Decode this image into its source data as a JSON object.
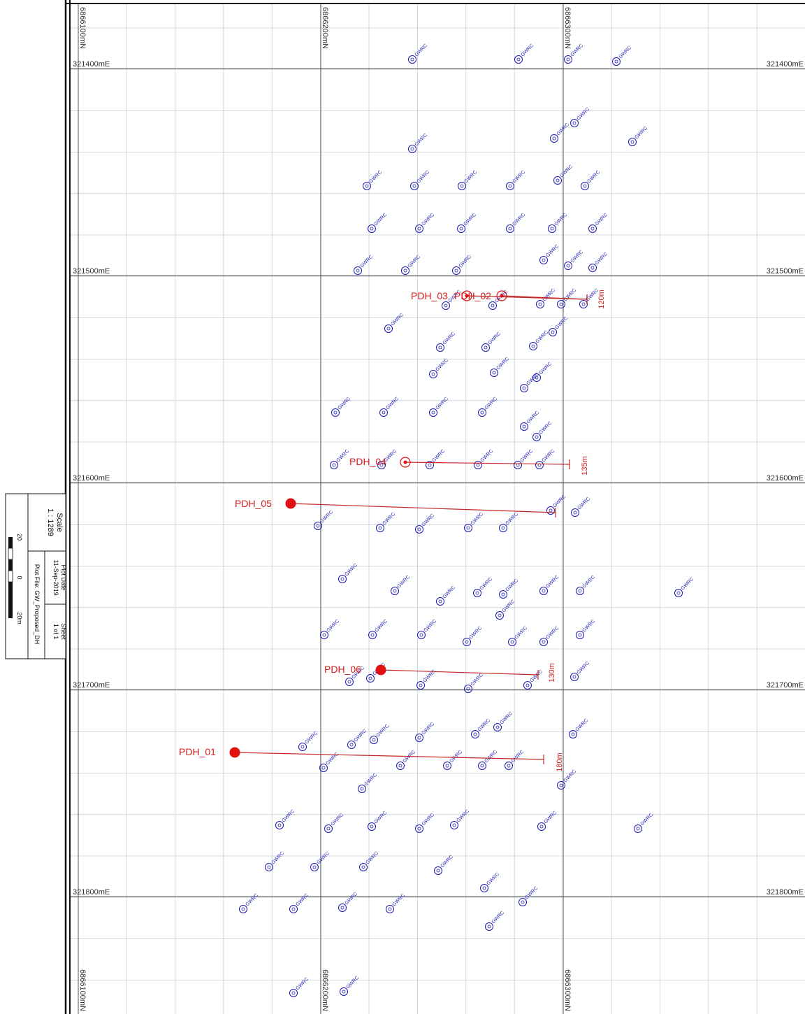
{
  "title_block": {
    "scale_label": "Scale",
    "scale_value": "1 : 1289",
    "plot_date_label": "Plot Date",
    "plot_date": "11-Sep-2019",
    "plot_file": "Plot File: GW_Proposed_DH",
    "sheet_label": "Sheet",
    "sheet_value": "1 of 1",
    "scalebar_left": "20",
    "scalebar_mid": "0",
    "scalebar_right": "20m"
  },
  "grid": {
    "eastings": [
      {
        "label": "321400mE",
        "value": 321400
      },
      {
        "label": "321500mE",
        "value": 321500
      },
      {
        "label": "321600mE",
        "value": 321600
      },
      {
        "label": "321700mE",
        "value": 321700
      },
      {
        "label": "321800mE",
        "value": 321800
      }
    ],
    "northings": [
      {
        "label": "6866100mN",
        "value": 6866100
      },
      {
        "label": "6866200mN",
        "value": 6866200
      },
      {
        "label": "6866300mN",
        "value": 6866300
      }
    ]
  },
  "colors": {
    "frame": "#111111",
    "grid_major": "#555555",
    "grid_minor": "#c8cdd6",
    "existing_hole": "#1a1ab4",
    "proposed_hole": "#e01010",
    "trace": "#c42828"
  },
  "proposed_holes": [
    {
      "name": "PDH_01",
      "length": "180m"
    },
    {
      "name": "PDH_02",
      "length": "120m"
    },
    {
      "name": "PDH_03",
      "length": ""
    },
    {
      "name": "PDH_04",
      "length": "135m"
    },
    {
      "name": "PDH_05",
      "length": ""
    },
    {
      "name": "PDH_06",
      "length": "130m"
    }
  ],
  "existing_holes_label": "GWRC"
}
